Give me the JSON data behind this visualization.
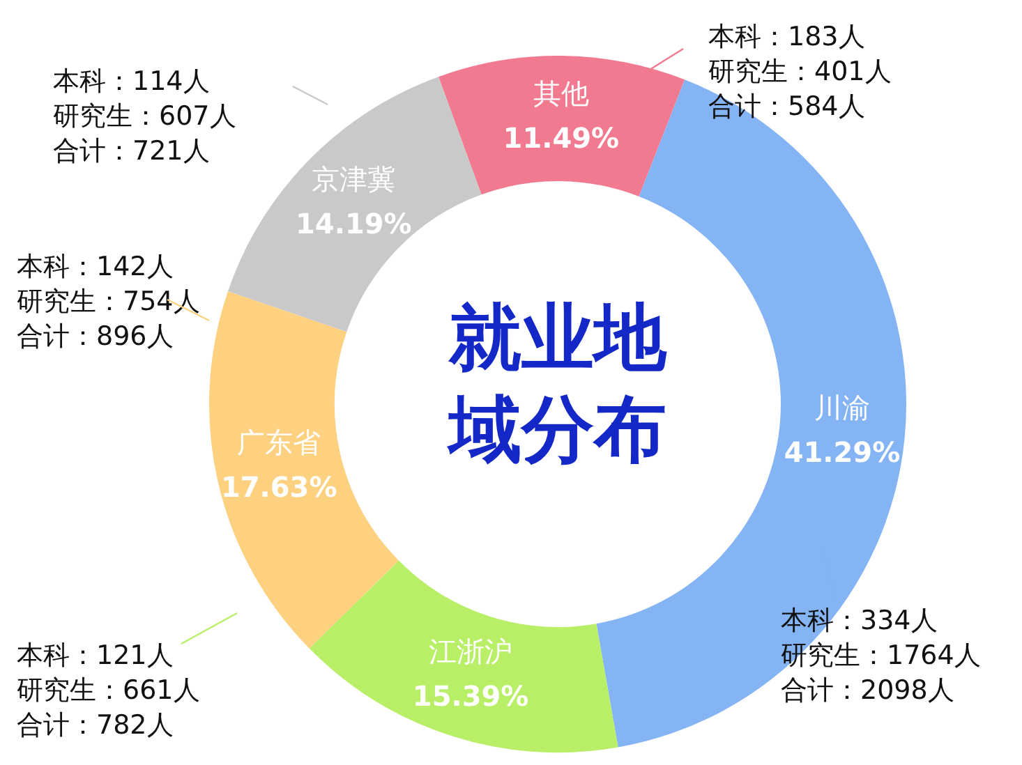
{
  "chart_data": {
    "type": "donut",
    "title": "就业地域分布",
    "categories": [
      "其他",
      "川渝",
      "江浙沪",
      "广东省",
      "京津冀"
    ],
    "values": [
      11.49,
      41.29,
      15.39,
      17.63,
      14.19
    ],
    "value_labels": [
      "11.49%",
      "41.29%",
      "15.39%",
      "17.63%",
      "14.19%"
    ],
    "colors": [
      "#f27a90",
      "#84b4f4",
      "#b8ef66",
      "#fdd180",
      "#c9c9c9"
    ],
    "annotations": [
      "本科：183人",
      "研究生：401人",
      "合计：584人",
      "本科：334人",
      "研究生：1764人",
      "合计：2098人",
      "本科：121人",
      "研究生：661人",
      "合计：782人",
      "本科：142人",
      "研究生：754人",
      "合计：896人",
      "本科：114人",
      "研究生：607人",
      "合计：721人"
    ]
  }
}
